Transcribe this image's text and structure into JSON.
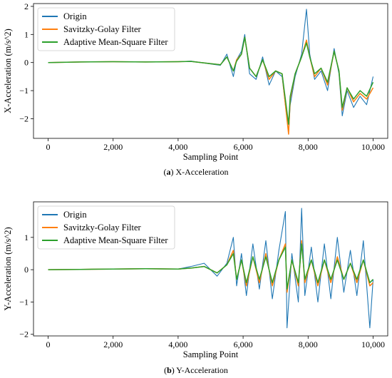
{
  "colors": {
    "origin": "#1f77b4",
    "savitzky_golay": "#ff7f0e",
    "adaptive_mean_square": "#2ca02c"
  },
  "captions": [
    {
      "letter": "a",
      "text": " X-Acceleration"
    },
    {
      "letter": "b",
      "text": " Y-Acceleration"
    }
  ],
  "chart_data": [
    {
      "type": "line",
      "xlabel": "Sampling Point",
      "ylabel": "X-Acceleration (m/s^2)",
      "xlim": [
        -450,
        10450
      ],
      "ylim": [
        -2.7,
        2.1
      ],
      "xticks": [
        0,
        2000,
        4000,
        6000,
        8000,
        10000
      ],
      "xtick_labels": [
        "0",
        "2,000",
        "4,000",
        "6,000",
        "8,000",
        "10,000"
      ],
      "yticks": [
        -2,
        -1,
        0,
        1,
        2
      ],
      "ytick_labels": [
        "−2",
        "−1",
        "0",
        "1",
        "2"
      ],
      "legend_position": "top-left",
      "grid": false,
      "series": [
        {
          "name": "Origin",
          "color": "origin",
          "x": [
            0,
            1000,
            2000,
            3000,
            4000,
            4400,
            5000,
            5300,
            5500,
            5700,
            5800,
            5950,
            6050,
            6200,
            6400,
            6600,
            6800,
            7000,
            7200,
            7400,
            7450,
            7600,
            7800,
            7950,
            8050,
            8200,
            8400,
            8600,
            8800,
            8950,
            9050,
            9200,
            9400,
            9600,
            9800,
            10000
          ],
          "y": [
            0.0,
            0.02,
            0.03,
            0.02,
            0.03,
            0.05,
            -0.05,
            -0.1,
            0.3,
            -0.5,
            0.1,
            0.4,
            1.0,
            -0.4,
            -0.6,
            0.2,
            -0.8,
            -0.3,
            -0.5,
            -2.5,
            -1.5,
            -0.5,
            0.3,
            1.9,
            0.3,
            -0.6,
            -0.3,
            -1.0,
            0.5,
            -0.4,
            -1.9,
            -1.0,
            -1.6,
            -1.2,
            -1.5,
            -0.5
          ]
        },
        {
          "name": "Savitzky-Golay Filter",
          "color": "savitzky_golay",
          "x": [
            0,
            1000,
            2000,
            3000,
            4000,
            4400,
            5000,
            5300,
            5500,
            5700,
            5800,
            5950,
            6050,
            6200,
            6400,
            6600,
            6800,
            7000,
            7200,
            7400,
            7450,
            7600,
            7800,
            7950,
            8050,
            8200,
            8400,
            8600,
            8800,
            8950,
            9050,
            9200,
            9400,
            9600,
            9800,
            10000
          ],
          "y": [
            0.0,
            0.02,
            0.03,
            0.02,
            0.03,
            0.04,
            -0.04,
            -0.08,
            0.2,
            -0.3,
            0.1,
            0.3,
            0.9,
            -0.2,
            -0.5,
            0.1,
            -0.6,
            -0.3,
            -0.4,
            -2.55,
            -1.3,
            -0.4,
            0.2,
            0.8,
            0.2,
            -0.5,
            -0.2,
            -0.8,
            0.4,
            -0.3,
            -1.7,
            -0.9,
            -1.4,
            -1.1,
            -1.3,
            -0.9
          ]
        },
        {
          "name": "Adaptive Mean-Square Filter",
          "color": "adaptive_mean_square",
          "x": [
            0,
            1000,
            2000,
            3000,
            4000,
            4400,
            5000,
            5300,
            5500,
            5700,
            5800,
            5950,
            6050,
            6200,
            6400,
            6600,
            6800,
            7000,
            7200,
            7400,
            7450,
            7600,
            7800,
            7950,
            8050,
            8200,
            8400,
            8600,
            8800,
            8950,
            9050,
            9200,
            9400,
            9600,
            9800,
            10000
          ],
          "y": [
            0.0,
            0.02,
            0.03,
            0.02,
            0.03,
            0.04,
            -0.04,
            -0.08,
            0.2,
            -0.3,
            0.05,
            0.3,
            0.9,
            -0.2,
            -0.5,
            0.1,
            -0.5,
            -0.3,
            -0.4,
            -2.2,
            -1.2,
            -0.4,
            0.2,
            0.7,
            0.2,
            -0.4,
            -0.2,
            -0.7,
            0.4,
            -0.3,
            -1.6,
            -0.9,
            -1.3,
            -1.0,
            -1.2,
            -0.7
          ]
        }
      ]
    },
    {
      "type": "line",
      "xlabel": "Sampling Point",
      "ylabel": "Y-Acceleration (m/s^2)",
      "xlim": [
        -450,
        10450
      ],
      "ylim": [
        -2.05,
        2.1
      ],
      "xticks": [
        0,
        2000,
        4000,
        6000,
        8000,
        10000
      ],
      "xtick_labels": [
        "0",
        "2,000",
        "4,000",
        "6,000",
        "8,000",
        "10,000"
      ],
      "yticks": [
        -2,
        -1,
        0,
        1
      ],
      "ytick_labels": [
        "−2",
        "−1",
        "0",
        "1"
      ],
      "legend_position": "top-left",
      "grid": false,
      "series": [
        {
          "name": "Origin",
          "color": "origin",
          "x": [
            0,
            1000,
            2000,
            3000,
            4000,
            4400,
            4800,
            5200,
            5500,
            5700,
            5800,
            5950,
            6100,
            6300,
            6500,
            6700,
            6900,
            7100,
            7300,
            7350,
            7500,
            7700,
            7800,
            7900,
            8100,
            8300,
            8500,
            8700,
            8900,
            9100,
            9300,
            9500,
            9700,
            9900,
            10000
          ],
          "y": [
            0.0,
            0.01,
            0.02,
            0.03,
            0.02,
            0.1,
            0.2,
            -0.2,
            0.2,
            1.0,
            -0.5,
            0.5,
            -0.8,
            0.8,
            -0.6,
            0.9,
            -0.9,
            0.6,
            1.8,
            -1.8,
            0.5,
            -1.0,
            1.9,
            -0.8,
            0.7,
            -1.0,
            0.8,
            -0.9,
            1.0,
            -0.7,
            0.6,
            -0.8,
            0.9,
            -1.8,
            -0.3
          ]
        },
        {
          "name": "Savitzky-Golay Filter",
          "color": "savitzky_golay",
          "x": [
            0,
            1000,
            2000,
            3000,
            4000,
            4400,
            4800,
            5200,
            5500,
            5700,
            5800,
            5950,
            6100,
            6300,
            6500,
            6700,
            6900,
            7100,
            7300,
            7350,
            7500,
            7700,
            7800,
            7900,
            8100,
            8300,
            8500,
            8700,
            8900,
            9100,
            9300,
            9500,
            9700,
            9900,
            10000
          ],
          "y": [
            0.0,
            0.01,
            0.02,
            0.03,
            0.02,
            0.05,
            0.1,
            -0.1,
            0.15,
            0.6,
            -0.3,
            0.3,
            -0.5,
            0.4,
            -0.4,
            0.5,
            -0.5,
            0.3,
            0.8,
            -0.7,
            0.3,
            -0.5,
            0.9,
            -0.4,
            0.3,
            -0.5,
            0.3,
            -0.4,
            0.4,
            -0.3,
            0.2,
            -0.4,
            0.3,
            -0.5,
            -0.4
          ]
        },
        {
          "name": "Adaptive Mean-Square Filter",
          "color": "adaptive_mean_square",
          "x": [
            0,
            1000,
            2000,
            3000,
            4000,
            4400,
            4800,
            5200,
            5500,
            5700,
            5800,
            5950,
            6100,
            6300,
            6500,
            6700,
            6900,
            7100,
            7300,
            7350,
            7500,
            7700,
            7800,
            7900,
            8100,
            8300,
            8500,
            8700,
            8900,
            9100,
            9300,
            9500,
            9700,
            9900,
            10000
          ],
          "y": [
            0.0,
            0.01,
            0.02,
            0.03,
            0.02,
            0.05,
            0.1,
            -0.1,
            0.15,
            0.5,
            -0.3,
            0.3,
            -0.4,
            0.4,
            -0.3,
            0.4,
            -0.4,
            0.3,
            0.7,
            -0.6,
            0.3,
            -0.4,
            0.8,
            -0.3,
            0.3,
            -0.4,
            0.3,
            -0.3,
            0.3,
            -0.3,
            0.2,
            -0.3,
            0.3,
            -0.4,
            -0.3
          ]
        }
      ]
    }
  ]
}
